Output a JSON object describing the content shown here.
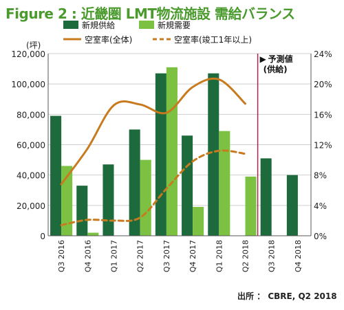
{
  "figure_title": "Figure 2 : 近畿圏 LMT物流施設 需給バランス",
  "source": "出所 ： CBRE, Q2 2018",
  "chart_data": {
    "type": "bar",
    "categories": [
      "Q3 2016",
      "Q4 2016",
      "Q1 2017",
      "Q2 2017",
      "Q3 2017",
      "Q4 2017",
      "Q1 2018",
      "Q2 2018",
      "Q3 2018",
      "Q4 2018"
    ],
    "ylabel_left": "(坪)",
    "ylim_left": [
      0,
      120000
    ],
    "yticks_left": [
      "0",
      "20,000",
      "40,000",
      "60,000",
      "80,000",
      "100,000",
      "120,000"
    ],
    "ylim_right": [
      0,
      24
    ],
    "yticks_right": [
      "0%",
      "4%",
      "8%",
      "12%",
      "16%",
      "20%",
      "24%"
    ],
    "forecast_label_line1": "予測値",
    "forecast_label_line2": "(供給)",
    "forecast_marker": "▶",
    "series": [
      {
        "name": "新規供給",
        "type": "bar",
        "color": "#1d6b3c",
        "values": [
          79000,
          33000,
          47000,
          70000,
          107000,
          66000,
          107000,
          null,
          51000,
          40000
        ]
      },
      {
        "name": "新規需要",
        "type": "bar",
        "color": "#7dc142",
        "values": [
          46000,
          2000,
          null,
          50000,
          111000,
          19000,
          69000,
          39000,
          null,
          null
        ]
      },
      {
        "name": "空室率(全体)",
        "type": "line",
        "style": "solid",
        "color": "#c87a1e",
        "values": [
          6.8,
          11.5,
          17.2,
          17.3,
          16.2,
          19.6,
          20.6,
          17.4,
          null,
          null
        ]
      },
      {
        "name": "空室率(竣工1年以上)",
        "type": "line",
        "style": "dashed",
        "color": "#c87a1e",
        "values": [
          1.4,
          2.1,
          2.0,
          2.4,
          6.2,
          9.8,
          11.2,
          10.8,
          null,
          null
        ]
      }
    ]
  }
}
